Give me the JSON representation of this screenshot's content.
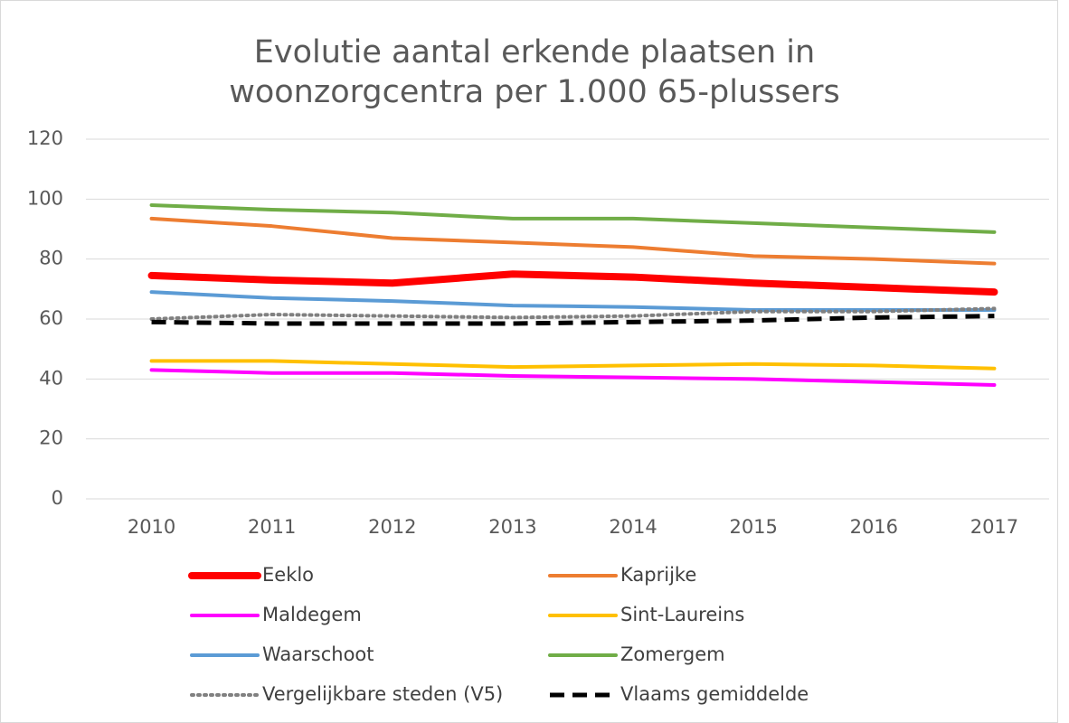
{
  "chart_data": {
    "type": "line",
    "title": "Evolutie aantal erkende plaatsen in woonzorgcentra per 1.000 65-plussers",
    "categories": [
      "2010",
      "2011",
      "2012",
      "2013",
      "2014",
      "2015",
      "2016",
      "2017"
    ],
    "ylim": [
      0,
      120
    ],
    "yticks": [
      0,
      20,
      40,
      60,
      80,
      100,
      120
    ],
    "grid": true,
    "series": [
      {
        "name": "Eeklo",
        "color": "#ff0000",
        "line_width": 8,
        "values": [
          74.5,
          73,
          72,
          75,
          74,
          72,
          70.5,
          69
        ]
      },
      {
        "name": "Kaprijke",
        "color": "#ed7d31",
        "line_width": 4,
        "values": [
          93.5,
          91,
          87,
          85.5,
          84,
          81,
          80,
          78.5
        ]
      },
      {
        "name": "Maldegem",
        "color": "#ff00ff",
        "line_width": 4,
        "values": [
          43,
          42,
          42,
          41,
          40.5,
          40,
          39,
          38
        ]
      },
      {
        "name": "Sint-Laureins",
        "color": "#ffc000",
        "line_width": 4,
        "values": [
          46,
          46,
          45,
          44,
          44.5,
          45,
          44.5,
          43.5
        ]
      },
      {
        "name": "Waarschoot",
        "color": "#5b9bd5",
        "line_width": 4,
        "values": [
          69,
          67,
          66,
          64.5,
          64,
          63,
          63,
          63
        ]
      },
      {
        "name": "Zomergem",
        "color": "#70ad47",
        "line_width": 4,
        "values": [
          98,
          96.5,
          95.5,
          93.5,
          93.5,
          92,
          90.5,
          89
        ]
      },
      {
        "name": "Vergelijkbare steden (V5)",
        "color": "#808080",
        "line_width": 4,
        "line_style": "dotted",
        "values": [
          60,
          61.5,
          61,
          60.5,
          61,
          62.5,
          62.5,
          63.5
        ]
      },
      {
        "name": "Vlaams gemiddelde",
        "color": "#000000",
        "line_width": 5,
        "line_style": "dashed",
        "values": [
          59,
          58.5,
          58.5,
          58.5,
          59,
          59.5,
          60.5,
          61
        ]
      }
    ]
  }
}
